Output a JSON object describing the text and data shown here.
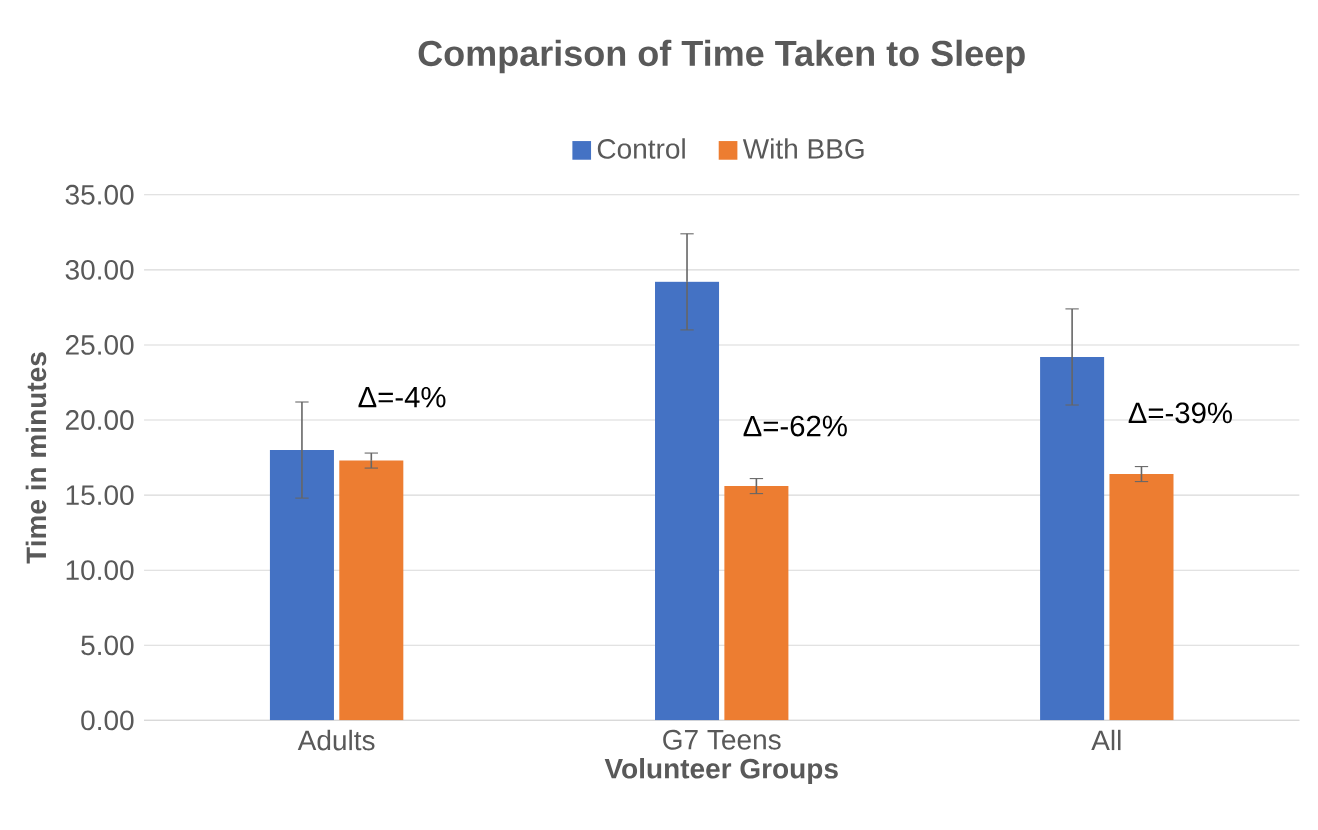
{
  "chart_data": {
    "type": "bar",
    "title": "Comparison of Time Taken to Sleep",
    "xlabel": "Volunteer Groups",
    "ylabel": "Time in minutes",
    "categories": [
      "Adults",
      "G7 Teens",
      "All"
    ],
    "series": [
      {
        "name": "Control",
        "color": "#4472c4",
        "values": [
          18.0,
          29.2,
          24.2
        ],
        "errors": [
          3.2,
          3.2,
          3.2
        ]
      },
      {
        "name": "With BBG",
        "color": "#ed7d31",
        "values": [
          17.3,
          15.6,
          16.4
        ],
        "errors": [
          0.5,
          0.5,
          0.5
        ]
      }
    ],
    "ylim": [
      0,
      35
    ],
    "yticks": [
      {
        "value": 0,
        "label": "0.00"
      },
      {
        "value": 5,
        "label": "5.00"
      },
      {
        "value": 10,
        "label": "10.00"
      },
      {
        "value": 15,
        "label": "15.00"
      },
      {
        "value": 20,
        "label": "20.00"
      },
      {
        "value": 25,
        "label": "25.00"
      },
      {
        "value": 30,
        "label": "30.00"
      },
      {
        "value": 35,
        "label": "35.00"
      }
    ],
    "annotations": [
      "Δ=-4%",
      "Δ=-62%",
      "Δ=-39%"
    ],
    "grid": "y",
    "legend": "top"
  }
}
